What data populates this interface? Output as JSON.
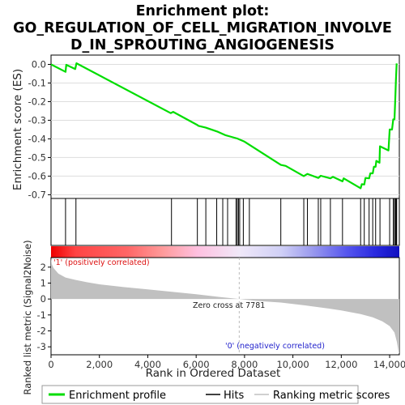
{
  "chart_data": {
    "type": "line",
    "title_lines": [
      "Enrichment plot:",
      "GO_REGULATION_OF_CELL_MIGRATION_INVOLVE",
      "D_IN_SPROUTING_ANGIOGENESIS"
    ],
    "xlabel": "Rank in Ordered Dataset",
    "ylabel_top": "Enrichment score (ES)",
    "ylabel_bottom": "Ranked list metric (Signal2Noise)",
    "x_range": [
      0,
      14400
    ],
    "x_ticks": [
      0,
      2000,
      4000,
      6000,
      8000,
      10000,
      12000,
      14000
    ],
    "x_tick_labels": [
      "0",
      "2,000",
      "4,000",
      "6,000",
      "8,000",
      "10,000",
      "12,000",
      "14,000"
    ],
    "es_ylim": [
      -0.72,
      0.05
    ],
    "es_ticks": [
      0.0,
      -0.1,
      -0.2,
      -0.3,
      -0.4,
      -0.5,
      -0.6,
      -0.7
    ],
    "es_tick_labels": [
      "0.0",
      "-0.1",
      "-0.2",
      "-0.3",
      "-0.4",
      "-0.5",
      "-0.6",
      "-0.7"
    ],
    "metric_ylim": [
      -3.5,
      2.6
    ],
    "metric_ticks": [
      2,
      1,
      0,
      -1,
      -2,
      -3
    ],
    "metric_tick_labels": [
      "2",
      "1",
      "0",
      "-1",
      "-2",
      "-3"
    ],
    "enrichment_profile": [
      [
        0,
        0.0
      ],
      [
        600,
        -0.04
      ],
      [
        630,
        -0.002
      ],
      [
        1000,
        -0.025
      ],
      [
        1050,
        0.006
      ],
      [
        4950,
        -0.262
      ],
      [
        5050,
        -0.255
      ],
      [
        6050,
        -0.326
      ],
      [
        6100,
        -0.33
      ],
      [
        6400,
        -0.34
      ],
      [
        6900,
        -0.362
      ],
      [
        7200,
        -0.38
      ],
      [
        7400,
        -0.387
      ],
      [
        7700,
        -0.398
      ],
      [
        8000,
        -0.415
      ],
      [
        9500,
        -0.54
      ],
      [
        9700,
        -0.545
      ],
      [
        10450,
        -0.6
      ],
      [
        10600,
        -0.588
      ],
      [
        11050,
        -0.61
      ],
      [
        11150,
        -0.598
      ],
      [
        11550,
        -0.612
      ],
      [
        11650,
        -0.604
      ],
      [
        12050,
        -0.628
      ],
      [
        12100,
        -0.612
      ],
      [
        12800,
        -0.665
      ],
      [
        12850,
        -0.643
      ],
      [
        12950,
        -0.645
      ],
      [
        13000,
        -0.61
      ],
      [
        13150,
        -0.612
      ],
      [
        13200,
        -0.585
      ],
      [
        13300,
        -0.585
      ],
      [
        13350,
        -0.55
      ],
      [
        13420,
        -0.55
      ],
      [
        13450,
        -0.518
      ],
      [
        13580,
        -0.528
      ],
      [
        13600,
        -0.44
      ],
      [
        13950,
        -0.462
      ],
      [
        14000,
        -0.35
      ],
      [
        14100,
        -0.35
      ],
      [
        14150,
        -0.295
      ],
      [
        14200,
        -0.295
      ],
      [
        14220,
        -0.23
      ],
      [
        14240,
        -0.16
      ],
      [
        14260,
        -0.085
      ],
      [
        14290,
        0.005
      ]
    ],
    "hits": [
      600,
      1030,
      4980,
      6050,
      6400,
      6850,
      7100,
      7300,
      7650,
      7700,
      7750,
      7800,
      7950,
      8200,
      9500,
      10450,
      10600,
      11050,
      11150,
      11550,
      12050,
      12800,
      12950,
      13150,
      13300,
      13420,
      13600,
      14000,
      14150,
      14200,
      14240,
      14270,
      14290
    ],
    "metric_profile": [
      [
        0,
        2.6
      ],
      [
        30,
        2.2
      ],
      [
        100,
        1.95
      ],
      [
        300,
        1.6
      ],
      [
        600,
        1.35
      ],
      [
        1000,
        1.2
      ],
      [
        1500,
        1.05
      ],
      [
        2000,
        0.92
      ],
      [
        3000,
        0.75
      ],
      [
        4000,
        0.6
      ],
      [
        5000,
        0.45
      ],
      [
        6000,
        0.3
      ],
      [
        7000,
        0.12
      ],
      [
        7781,
        0.0
      ],
      [
        8500,
        -0.12
      ],
      [
        9500,
        -0.22
      ],
      [
        10500,
        -0.4
      ],
      [
        11500,
        -0.6
      ],
      [
        12000,
        -0.72
      ],
      [
        12800,
        -0.95
      ],
      [
        13300,
        -1.15
      ],
      [
        13700,
        -1.4
      ],
      [
        14000,
        -1.7
      ],
      [
        14200,
        -2.1
      ],
      [
        14300,
        -2.7
      ],
      [
        14380,
        -3.4
      ],
      [
        14400,
        -3.4
      ]
    ],
    "zero_cross_x": 7781,
    "zero_cross_label": "Zero cross at 7781",
    "pos_label": "'1' (positively correlated)",
    "neg_label": "'0' (negatively correlated)",
    "legend": [
      "Enrichment profile",
      "Hits",
      "Ranking metric scores"
    ],
    "colors": {
      "profile": "#00dd00",
      "hits": "#000000",
      "metric_fill": "#c0c0c0",
      "pos": "#dd1111",
      "neg": "#2222cc",
      "grid": "#dddddd"
    }
  }
}
